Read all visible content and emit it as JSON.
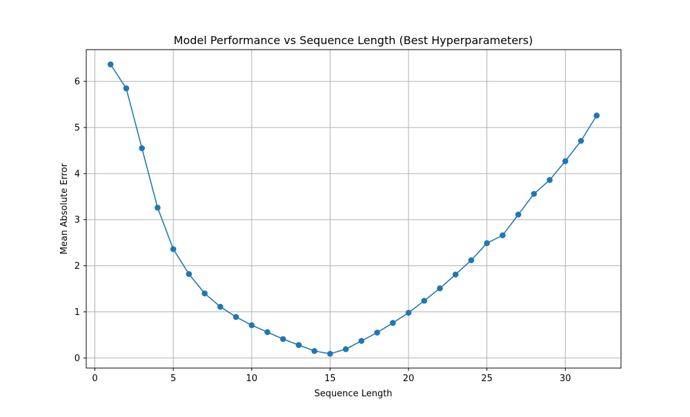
{
  "chart_data": {
    "type": "line",
    "title": "Model Performance vs Sequence Length (Best Hyperparameters)",
    "xlabel": "Sequence Length",
    "ylabel": "Mean Absolute Error",
    "xlim": [
      -0.55,
      33.55
    ],
    "ylim": [
      -0.22,
      6.69
    ],
    "xticks": [
      0,
      5,
      10,
      15,
      20,
      25,
      30
    ],
    "yticks": [
      0,
      1,
      2,
      3,
      4,
      5,
      6
    ],
    "grid": true,
    "series": [
      {
        "x": [
          1,
          2,
          3,
          4,
          5,
          6,
          7,
          8,
          9,
          10,
          11,
          12,
          13,
          14,
          15,
          16,
          17,
          18,
          19,
          20,
          21,
          22,
          23,
          24,
          25,
          26,
          27,
          28,
          29,
          30,
          31,
          32
        ],
        "y": [
          6.37,
          5.85,
          4.55,
          3.26,
          2.36,
          1.82,
          1.4,
          1.11,
          0.89,
          0.71,
          0.56,
          0.41,
          0.28,
          0.15,
          0.09,
          0.19,
          0.37,
          0.55,
          0.76,
          0.98,
          1.24,
          1.51,
          1.81,
          2.12,
          2.49,
          2.66,
          3.11,
          3.56,
          3.86,
          4.27,
          4.71,
          5.26
        ],
        "color": "#1f77b4",
        "marker": "circle"
      }
    ]
  }
}
